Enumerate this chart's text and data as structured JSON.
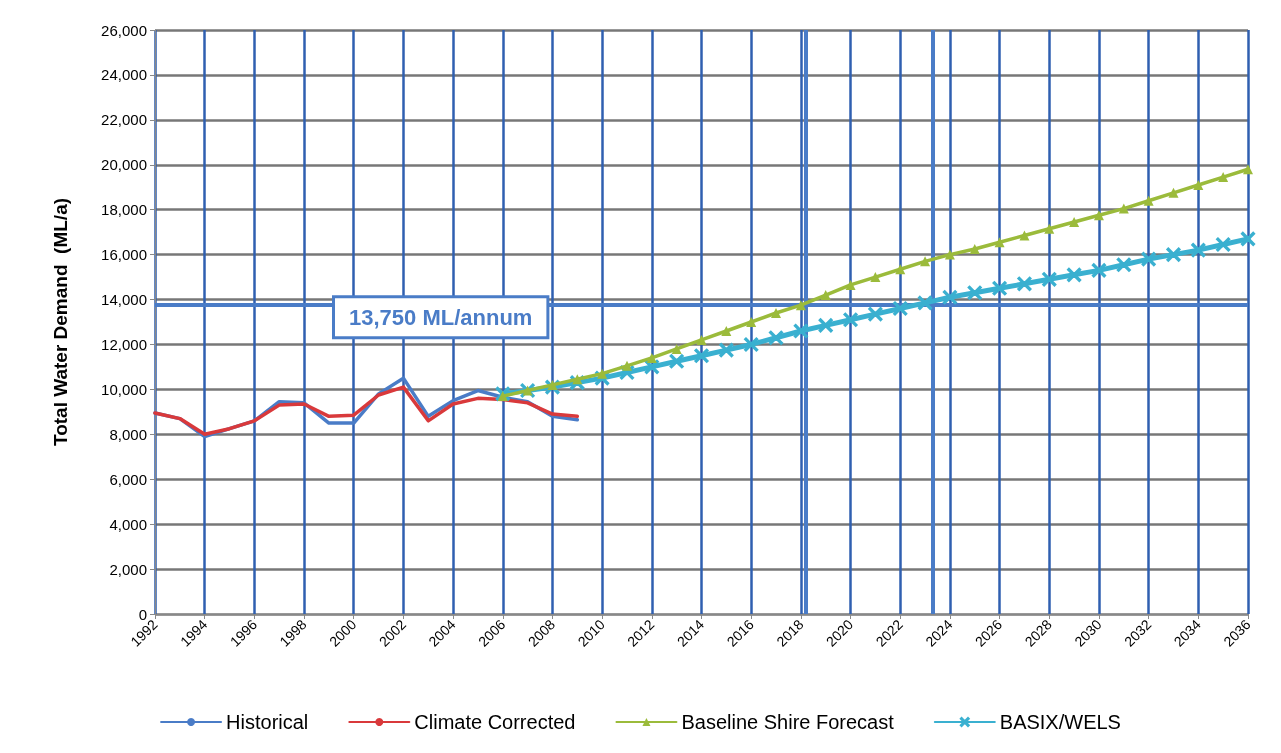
{
  "chart_data": {
    "type": "line",
    "ylabel": "Total Water Demand  (ML/a)",
    "xlim": [
      1992,
      2036
    ],
    "xticks": [
      1992,
      1994,
      1996,
      1998,
      2000,
      2002,
      2004,
      2006,
      2008,
      2010,
      2012,
      2014,
      2016,
      2018,
      2020,
      2022,
      2024,
      2026,
      2028,
      2030,
      2032,
      2034,
      2036
    ],
    "ylim": [
      0,
      26000
    ],
    "yticks": [
      {
        "value": 0,
        "label": "0"
      },
      {
        "value": 2000,
        "label": "2,000"
      },
      {
        "value": 4000,
        "label": "4,000"
      },
      {
        "value": 6000,
        "label": "6,000"
      },
      {
        "value": 8000,
        "label": "8,000"
      },
      {
        "value": 10000,
        "label": "10,000"
      },
      {
        "value": 12000,
        "label": "12,000"
      },
      {
        "value": 14000,
        "label": "14,000"
      },
      {
        "value": 16000,
        "label": "16,000"
      },
      {
        "value": 18000,
        "label": "18,000"
      },
      {
        "value": 20000,
        "label": "20,000"
      },
      {
        "value": 22000,
        "label": "22,000"
      },
      {
        "value": 24000,
        "label": "24,000"
      },
      {
        "value": 26000,
        "label": "26,000"
      }
    ],
    "grid": true,
    "legend": "bottom",
    "line_style": "solid",
    "ref_lines": [
      {
        "axis": "y",
        "value": 13750,
        "label": "13,750 ML/annum",
        "color": "#4a7cc7"
      },
      {
        "axis": "x",
        "value": 2018.2,
        "label": null,
        "color": "#4a7cc7"
      },
      {
        "axis": "x",
        "value": 2023.3,
        "label": null,
        "color": "#4a7cc7"
      }
    ],
    "series": [
      {
        "name": "Historical",
        "color": "#4a7cc7",
        "marker": "none",
        "x": [
          1992,
          1993,
          1994,
          1995,
          1996,
          1997,
          1998,
          1999,
          2000,
          2001,
          2002,
          2003,
          2004,
          2005,
          2006,
          2007,
          2008,
          2009
        ],
        "values": [
          8950,
          8700,
          7900,
          8250,
          8600,
          9450,
          9400,
          8500,
          8500,
          9800,
          10500,
          8800,
          9500,
          9950,
          9650,
          9450,
          8800,
          8650
        ]
      },
      {
        "name": "Climate Corrected",
        "color": "#d9393b",
        "marker": "none",
        "x": [
          1992,
          1993,
          1994,
          1995,
          1996,
          1997,
          1998,
          1999,
          2000,
          2001,
          2002,
          2003,
          2004,
          2005,
          2006,
          2007,
          2008,
          2009
        ],
        "values": [
          8950,
          8700,
          8000,
          8250,
          8600,
          9300,
          9350,
          8800,
          8850,
          9750,
          10100,
          8600,
          9350,
          9600,
          9550,
          9400,
          8900,
          8800
        ]
      },
      {
        "name": "Baseline Shire Forecast",
        "color": "#9bbb3b",
        "marker": "triangle",
        "x": [
          2006,
          2007,
          2008,
          2009,
          2010,
          2011,
          2012,
          2013,
          2014,
          2015,
          2016,
          2017,
          2018,
          2019,
          2020,
          2021,
          2022,
          2023,
          2024,
          2025,
          2026,
          2027,
          2028,
          2029,
          2030,
          2031,
          2032,
          2033,
          2034,
          2035,
          2036
        ],
        "values": [
          9700,
          9950,
          10200,
          10450,
          10700,
          11050,
          11400,
          11800,
          12200,
          12600,
          13000,
          13400,
          13750,
          14200,
          14650,
          15000,
          15350,
          15700,
          16000,
          16250,
          16550,
          16850,
          17150,
          17450,
          17750,
          18050,
          18400,
          18750,
          19100,
          19450,
          19800
        ]
      },
      {
        "name": "BASIX/WELS",
        "color": "#3ab0d0",
        "marker": "cross",
        "x": [
          2006,
          2007,
          2008,
          2009,
          2010,
          2011,
          2012,
          2013,
          2014,
          2015,
          2016,
          2017,
          2018,
          2019,
          2020,
          2021,
          2022,
          2023,
          2024,
          2025,
          2026,
          2027,
          2028,
          2029,
          2030,
          2031,
          2032,
          2033,
          2034,
          2035,
          2036
        ],
        "values": [
          9800,
          9950,
          10100,
          10300,
          10500,
          10750,
          11000,
          11250,
          11500,
          11750,
          12000,
          12300,
          12600,
          12850,
          13100,
          13350,
          13600,
          13850,
          14100,
          14300,
          14500,
          14700,
          14900,
          15100,
          15300,
          15550,
          15800,
          16000,
          16200,
          16450,
          16700
        ]
      }
    ]
  }
}
